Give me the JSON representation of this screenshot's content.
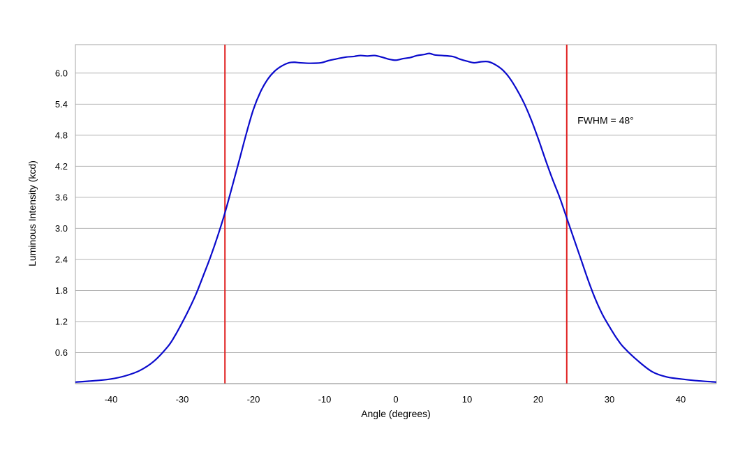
{
  "chart_data": {
    "type": "line",
    "title": "",
    "xlabel": "Angle (degrees)",
    "ylabel": "Luminous Intensity (kcd)",
    "xlim": [
      -45,
      45
    ],
    "ylim": [
      0,
      6.55
    ],
    "x_ticks": [
      -40,
      -30,
      -20,
      -10,
      0,
      10,
      20,
      30,
      40
    ],
    "x_tick_labels": [
      "-40",
      "-30",
      "-20",
      "-10",
      "0",
      "10",
      "20",
      "30",
      "40"
    ],
    "y_ticks": [
      0.6,
      1.2,
      1.8,
      2.4,
      3.0,
      3.6,
      4.2,
      4.8,
      5.4,
      6.0
    ],
    "y_tick_labels": [
      "0.6",
      "1.2",
      "1.8",
      "2.4",
      "3.0",
      "3.6",
      "4.2",
      "4.8",
      "5.4",
      "6.0"
    ],
    "grid": "horizontal",
    "series_color": "#0a0acc",
    "marker_color": "#e02020",
    "series": [
      {
        "x": [
          -45,
          -42,
          -40,
          -38,
          -36,
          -34,
          -32,
          -31,
          -30,
          -29,
          -28,
          -27,
          -26,
          -25,
          -24,
          -23,
          -22,
          -21,
          -20,
          -19,
          -18,
          -17,
          -16,
          -15,
          -14.2,
          -13.5,
          -12,
          -10.5,
          -9.5,
          -8.5,
          -7,
          -6,
          -5,
          -4,
          -3,
          -2,
          -1,
          0,
          1,
          2,
          3,
          4,
          4.7,
          5.5,
          6.5,
          8,
          9,
          10,
          11,
          12,
          13,
          14,
          15,
          16,
          17,
          18,
          19,
          20,
          21,
          22,
          23,
          24,
          25,
          26,
          27,
          28,
          29,
          30,
          31,
          32,
          34,
          36,
          38,
          40,
          42,
          45
        ],
        "y": [
          0.03,
          0.06,
          0.09,
          0.15,
          0.25,
          0.43,
          0.72,
          0.93,
          1.18,
          1.45,
          1.75,
          2.1,
          2.46,
          2.86,
          3.3,
          3.8,
          4.31,
          4.83,
          5.3,
          5.64,
          5.88,
          6.04,
          6.14,
          6.2,
          6.21,
          6.2,
          6.19,
          6.2,
          6.24,
          6.27,
          6.31,
          6.32,
          6.34,
          6.33,
          6.34,
          6.31,
          6.27,
          6.25,
          6.28,
          6.3,
          6.34,
          6.36,
          6.38,
          6.35,
          6.34,
          6.32,
          6.27,
          6.23,
          6.2,
          6.22,
          6.22,
          6.16,
          6.06,
          5.9,
          5.68,
          5.42,
          5.1,
          4.73,
          4.33,
          3.95,
          3.6,
          3.2,
          2.8,
          2.4,
          2.0,
          1.64,
          1.34,
          1.1,
          0.88,
          0.7,
          0.44,
          0.23,
          0.13,
          0.09,
          0.06,
          0.03
        ]
      }
    ],
    "vertical_markers": [
      -24,
      24
    ],
    "annotations": [
      {
        "text": "FWHM = 48°",
        "x": 25.5,
        "y": 5.02
      }
    ]
  }
}
